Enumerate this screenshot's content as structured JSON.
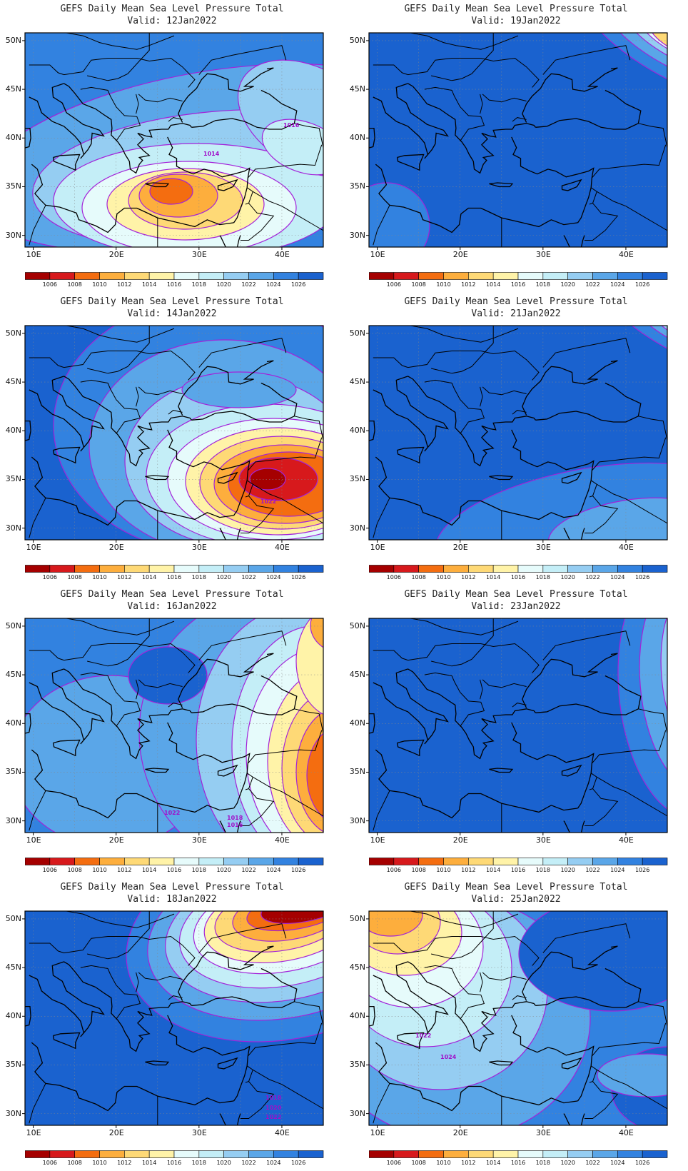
{
  "title": "GEFS Daily Mean Sea Level Pressure Total",
  "valid_prefix": "Valid:",
  "panels": [
    {
      "id": "p12",
      "date": "12Jan2022",
      "col": 0,
      "row": 0,
      "contour_labels": [
        "1016",
        "1014"
      ]
    },
    {
      "id": "p19",
      "date": "19Jan2022",
      "col": 1,
      "row": 0,
      "contour_labels": []
    },
    {
      "id": "p14",
      "date": "14Jan2022",
      "col": 0,
      "row": 1,
      "contour_labels": [
        "1022"
      ]
    },
    {
      "id": "p21",
      "date": "21Jan2022",
      "col": 1,
      "row": 1,
      "contour_labels": []
    },
    {
      "id": "p16",
      "date": "16Jan2022",
      "col": 0,
      "row": 2,
      "contour_labels": [
        "1022",
        "1018",
        "1016"
      ]
    },
    {
      "id": "p23",
      "date": "23Jan2022",
      "col": 1,
      "row": 2,
      "contour_labels": []
    },
    {
      "id": "p18",
      "date": "18Jan2022",
      "col": 0,
      "row": 3,
      "contour_labels": [
        "1018",
        "1020",
        "1022",
        "1024"
      ]
    },
    {
      "id": "p25",
      "date": "25Jan2022",
      "col": 1,
      "row": 3,
      "contour_labels": [
        "1022",
        "1024"
      ]
    }
  ],
  "lat_labels": [
    "50N",
    "45N",
    "40N",
    "35N",
    "30N"
  ],
  "lon_labels": [
    "10E",
    "20E",
    "30E",
    "40E"
  ],
  "colorbar": {
    "labels": [
      "1006",
      "1008",
      "1010",
      "1012",
      "1014",
      "1016",
      "1018",
      "1020",
      "1022",
      "1024",
      "1026"
    ],
    "colors": [
      "#a50000",
      "#d7191c",
      "#f46d10",
      "#fdae3d",
      "#fed976",
      "#fff3a8",
      "#e6fbfb",
      "#c4eef7",
      "#95cdf2",
      "#5aa6e8",
      "#3282e0",
      "#1a62cf"
    ]
  },
  "map_colors": {
    "contour": "#a322d9",
    "label": "#a00fc9",
    "coast": "#000000"
  }
}
